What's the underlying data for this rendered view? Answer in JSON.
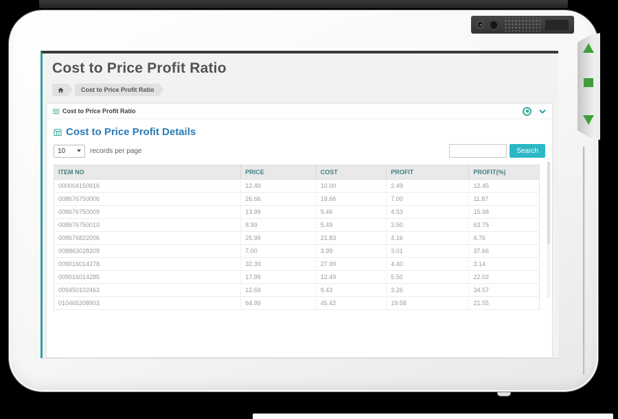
{
  "page": {
    "title": "Cost to Price Profit Ratio",
    "breadcrumb": {
      "home_icon": "home-icon",
      "items": [
        "Cost to Price Profit Ratio"
      ]
    },
    "panel": {
      "title": "Cost to Price Profit Ratio",
      "title_icon": "table-icon",
      "toggle_icon": "circle-toggle-icon",
      "collapse_icon": "chevron-down-icon"
    },
    "details": {
      "title": "Cost to Price Profit Details",
      "icon": "table-icon"
    },
    "controls": {
      "page_size": "10",
      "page_size_label": "records per page",
      "search_value": "",
      "search_button": "Search"
    },
    "table": {
      "columns": [
        "ITEM NO",
        "PRICE",
        "COST",
        "PROFIT",
        "PROFIT(%)"
      ],
      "rows": [
        [
          "000004150916",
          "12.49",
          "10.00",
          "2.49",
          "12.45"
        ],
        [
          "008676750006",
          "26.66",
          "19.66",
          "7.00",
          "11.87"
        ],
        [
          "008676750009",
          "13.99",
          "9.46",
          "4.53",
          "15.98"
        ],
        [
          "008676750010",
          "8.99",
          "5.49",
          "3.50",
          "63.75"
        ],
        [
          "008676822006",
          "25.99",
          "21.83",
          "4.16",
          "4.76"
        ],
        [
          "008863028209",
          "7.00",
          "3.99",
          "3.01",
          "37.66"
        ],
        [
          "009016014278",
          "32.39",
          "27.99",
          "4.40",
          "3.14"
        ],
        [
          "009016014285",
          "17.99",
          "12.49",
          "5.50",
          "22.02"
        ],
        [
          "009450102463",
          "12.69",
          "9.43",
          "3.26",
          "34.57"
        ],
        [
          "010465208903",
          "64.99",
          "45.42",
          "19.58",
          "21.55"
        ]
      ]
    },
    "colors": {
      "accent_teal": "#2f9fa0",
      "icon_teal": "#3aa79b",
      "button_cyan": "#2bb8c4",
      "heading_blue": "#2a7ab5",
      "header_text_teal": "#3f7e7c",
      "side_button_green": "#3f9d3c"
    }
  }
}
